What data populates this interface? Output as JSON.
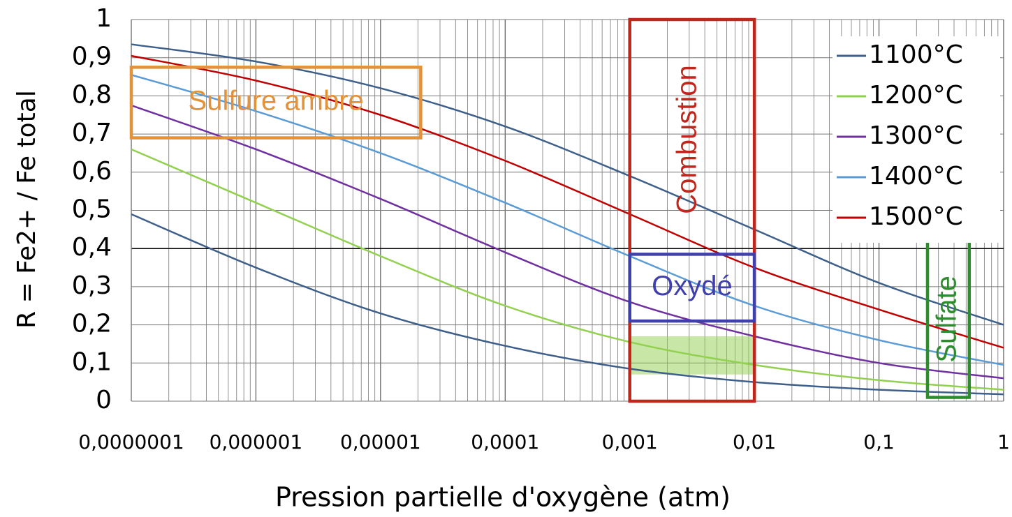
{
  "chart_data": {
    "type": "line",
    "x_label": "Pression partielle d'oxygène (atm)",
    "y_label": "R = Fe2+ / Fe total",
    "x": [
      1e-07,
      1e-06,
      1e-05,
      0.0001,
      0.001,
      0.01,
      0.1,
      1
    ],
    "x_log": true,
    "xlim": [
      1e-07,
      1
    ],
    "xticks": [
      {
        "value": 1e-07,
        "label": "0,0000001"
      },
      {
        "value": 1e-06,
        "label": "0,000001"
      },
      {
        "value": 1e-05,
        "label": "0,00001"
      },
      {
        "value": 0.0001,
        "label": "0,0001"
      },
      {
        "value": 0.001,
        "label": "0,001"
      },
      {
        "value": 0.01,
        "label": "0,01"
      },
      {
        "value": 0.1,
        "label": "0,1"
      },
      1
    ],
    "ylim": [
      0,
      1
    ],
    "yticks": [
      0,
      {
        "value": 0.1,
        "label": "0,1"
      },
      {
        "value": 0.2,
        "label": "0,2"
      },
      {
        "value": 0.3,
        "label": "0,3"
      },
      {
        "value": 0.4,
        "label": "0,4"
      },
      {
        "value": 0.5,
        "label": "0,5"
      },
      {
        "value": 0.6,
        "label": "0,6"
      },
      {
        "value": 0.7,
        "label": "0,7"
      },
      {
        "value": 0.8,
        "label": "0,8"
      },
      {
        "value": 0.9,
        "label": "0,9"
      },
      1
    ],
    "grid": true,
    "minor_grid": true,
    "reference_line": 0.4,
    "legend": "top-right",
    "series": [
      {
        "name": "1100°C",
        "color": "#3d5f8a",
        "values": [
          0.49,
          0.35,
          0.23,
          0.145,
          0.085,
          0.05,
          0.03,
          0.018
        ]
      },
      {
        "name": "1200°C",
        "color": "#92d050",
        "values": [
          0.66,
          0.52,
          0.38,
          0.25,
          0.155,
          0.095,
          0.055,
          0.03
        ]
      },
      {
        "name": "1300°C",
        "color": "#7030a0",
        "values": [
          0.775,
          0.66,
          0.53,
          0.39,
          0.26,
          0.17,
          0.1,
          0.06
        ]
      },
      {
        "name": "1400°C",
        "color": "#5b9bd5",
        "values": [
          0.855,
          0.76,
          0.65,
          0.52,
          0.38,
          0.25,
          0.16,
          0.095
        ]
      },
      {
        "name": "1500°C",
        "color": "#c00000",
        "values": [
          0.905,
          0.84,
          0.75,
          0.63,
          0.49,
          0.35,
          0.24,
          0.14
        ]
      },
      {
        "color": "#3d5f8a",
        "values": [
          0.935,
          0.89,
          0.82,
          0.72,
          0.59,
          0.45,
          0.31,
          0.2
        ]
      }
    ],
    "shaded_region": {
      "color": "#92d050",
      "x": [
        0.001,
        0.01
      ],
      "y": [
        0.07,
        0.17
      ]
    },
    "annotations": [
      {
        "text": "Sulfure ambre",
        "color": "#e4923a",
        "x": [
          1e-07,
          2.1e-05
        ],
        "y": [
          0.69,
          0.875
        ],
        "vertical": false
      },
      {
        "text": "Combustion",
        "color": "#c0261c",
        "x": [
          0.001,
          0.01
        ],
        "y": [
          0,
          1
        ],
        "vertical": true
      },
      {
        "text": "Oxydé",
        "color": "#3f3fae",
        "x": [
          0.001,
          0.01
        ],
        "y": [
          0.21,
          0.385
        ],
        "vertical": false
      },
      {
        "text": "Sulfate",
        "color": "#2e8b2e",
        "x": [
          0.245,
          0.53
        ],
        "y": [
          0.01,
          0.42
        ],
        "vertical": true
      }
    ]
  }
}
